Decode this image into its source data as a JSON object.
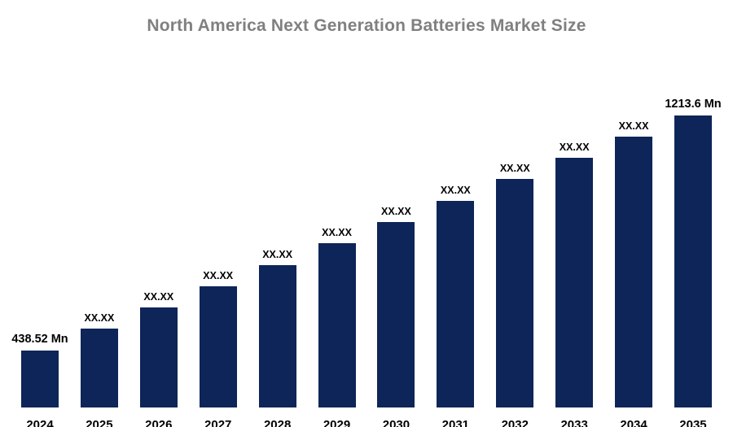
{
  "chart_data": {
    "type": "bar",
    "title": "North America Next Generation Batteries Market Size",
    "unit": "Mn",
    "categories": [
      "2024",
      "2025",
      "2026",
      "2027",
      "2028",
      "2029",
      "2030",
      "2031",
      "2032",
      "2033",
      "2034",
      "2035"
    ],
    "values": [
      438.52,
      508.98,
      579.44,
      649.9,
      720.36,
      790.83,
      861.29,
      931.75,
      1002.21,
      1072.67,
      1143.14,
      1213.6
    ],
    "bar_labels": [
      "438.52  Mn",
      "XX.XX",
      "XX.XX",
      "XX.XX",
      "XX.XX",
      "XX.XX",
      "XX.XX",
      "XX.XX",
      "XX.XX",
      "XX.XX",
      "XX.XX",
      "1213.6 Mn"
    ],
    "first_value_label": "438.52  Mn",
    "last_value_label": "1213.6 Mn",
    "placeholder_label": "XX.XX",
    "xlabel": "",
    "ylabel": "",
    "ylim": [
      250,
      1250
    ],
    "grid": false,
    "legend": "none",
    "bar_color": "#0d2558",
    "title_color": "#808080",
    "label_color": "#000000"
  }
}
